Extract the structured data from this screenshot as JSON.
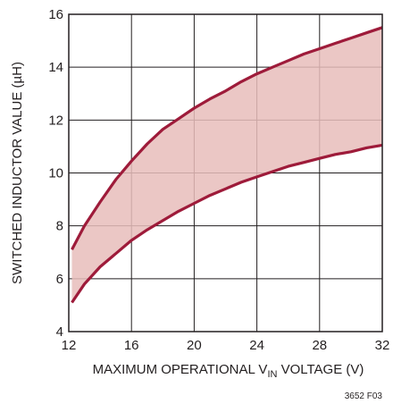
{
  "chart_data": {
    "type": "area",
    "title": "",
    "xlabel_main": "MAXIMUM OPERATIONAL V",
    "xlabel_sub": "IN",
    "xlabel_tail": " VOLTAGE (V)",
    "ylabel": "SWITCHED INDUCTOR VALUE (µH)",
    "xlim": [
      12,
      32
    ],
    "ylim": [
      4,
      16
    ],
    "x_ticks": [
      "12",
      "16",
      "20",
      "24",
      "28",
      "32"
    ],
    "y_ticks": [
      "4",
      "6",
      "8",
      "10",
      "12",
      "14",
      "16"
    ],
    "grid": true,
    "band": {
      "x": [
        12.2,
        13,
        14,
        15,
        16,
        17,
        18,
        19,
        20,
        21,
        22,
        23,
        24,
        25,
        26,
        27,
        28,
        29,
        30,
        31,
        32
      ],
      "upper": [
        7.1,
        8.0,
        8.9,
        9.75,
        10.45,
        11.1,
        11.65,
        12.05,
        12.45,
        12.8,
        13.1,
        13.45,
        13.75,
        14.0,
        14.25,
        14.5,
        14.7,
        14.9,
        15.1,
        15.3,
        15.5
      ],
      "lower": [
        5.1,
        5.8,
        6.45,
        6.95,
        7.45,
        7.85,
        8.2,
        8.55,
        8.85,
        9.15,
        9.4,
        9.65,
        9.85,
        10.05,
        10.25,
        10.4,
        10.55,
        10.7,
        10.8,
        10.95,
        11.05
      ]
    },
    "colors": {
      "line": "#9e1b3a",
      "fill": "#e8bdbb",
      "grid": "#231f20"
    },
    "figure_id": "3652 F03"
  }
}
